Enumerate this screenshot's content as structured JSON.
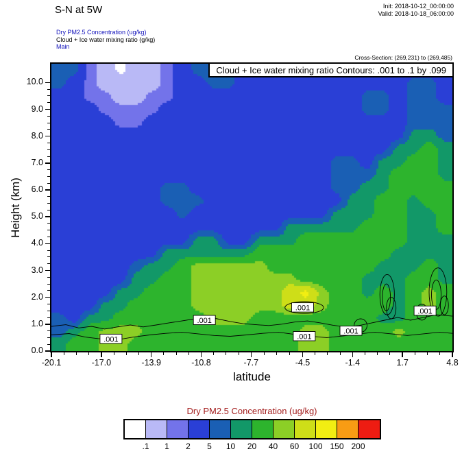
{
  "header": {
    "title": "S-N at 5W",
    "init_label": "Init: 2018-10-12_00:00:00",
    "valid_label": "Valid: 2018-10-18_06:00:00",
    "legend_lines": [
      {
        "text": "Dry PM2.5 Concentration   (ug/kg)",
        "color": "#1212bb"
      },
      {
        "text": "Cloud + Ice water mixing ratio   (g/kg)",
        "color": "#000000"
      },
      {
        "text": "Main",
        "color": "#1212bb"
      }
    ],
    "cross_section": "Cross-Section: (269,231) to (269,485)"
  },
  "chart_data": {
    "type": "heatmap",
    "title": "S-N at 5W",
    "banner": "Cloud + Ice water mixing ratio Contours: .001 to .1 by .099",
    "xlabel": "latitude",
    "ylabel": "Height (km)",
    "xlim": [
      -20.1,
      4.8
    ],
    "ylim": [
      0,
      10.7
    ],
    "x_ticks": {
      "values": [
        -20.1,
        -17.0,
        -13.9,
        -10.8,
        -7.7,
        -4.5,
        -1.4,
        1.7,
        4.8
      ],
      "labels": [
        "-20.1",
        "-17.0",
        "-13.9",
        "-10.8",
        "-7.7",
        "-4.5",
        "-1.4",
        "1.7",
        "4.8"
      ]
    },
    "y_ticks": {
      "values": [
        0,
        1,
        2,
        3,
        4,
        5,
        6,
        7,
        8,
        9,
        10
      ],
      "labels": [
        "0.0",
        "1.0",
        "2.0",
        "3.0",
        "4.0",
        "5.0",
        "6.0",
        "7.0",
        "8.0",
        "9.0",
        "10.0"
      ]
    },
    "colorbar": {
      "title": "Dry PM2.5 Concentration  (ug/kg)",
      "title_color": "#a41e1e",
      "units": "ug/kg",
      "levels": [
        0.1,
        1,
        2,
        5,
        10,
        20,
        40,
        60,
        100,
        150,
        200
      ],
      "labels": [
        ".1",
        "1",
        "2",
        "5",
        "10",
        "20",
        "40",
        "60",
        "100",
        "150",
        "200"
      ],
      "palette": [
        "#ffffff",
        "#b9b9f6",
        "#7373ea",
        "#2a3fd6",
        "#1a5fb4",
        "#129868",
        "#2db42d",
        "#8ccf26",
        "#cede18",
        "#f2ee12",
        "#f89c14",
        "#ee1c12"
      ]
    },
    "field": {
      "name": "Dry PM2.5 Concentration",
      "units": "ug/kg",
      "lat_range": [
        -20.1,
        4.8
      ],
      "height_range_km": [
        0,
        10.7
      ],
      "rows_order": "top_to_bottom",
      "values": [
        [
          7,
          7,
          1.5,
          0.5,
          0.05,
          0.5,
          0.5,
          1.5,
          3,
          7,
          7,
          7,
          3,
          3,
          3,
          3,
          3,
          3,
          3,
          3,
          3,
          3,
          3,
          3,
          3,
          3
        ],
        [
          7,
          3,
          1.5,
          0.5,
          0.5,
          0.5,
          0.5,
          1.5,
          3,
          3,
          7,
          7,
          3,
          3,
          3,
          3,
          3,
          3,
          3,
          3,
          3,
          3,
          3,
          7,
          7,
          3
        ],
        [
          3,
          3,
          1.5,
          1.5,
          0.5,
          0.5,
          1.5,
          1.5,
          3,
          3,
          3,
          3,
          3,
          3,
          3,
          3,
          3,
          3,
          3,
          3,
          7,
          7,
          3,
          7,
          7,
          3
        ],
        [
          3,
          3,
          3,
          1.5,
          1.5,
          1.5,
          1.5,
          3,
          3,
          3,
          3,
          3,
          3,
          3,
          3,
          3,
          3,
          3,
          3,
          3,
          7,
          7,
          3,
          7,
          7,
          7
        ],
        [
          3,
          3,
          3,
          3,
          1.5,
          1.5,
          3,
          3,
          3,
          3,
          3,
          3,
          3,
          3,
          3,
          3,
          3,
          3,
          3,
          3,
          3,
          3,
          3,
          7,
          7,
          7
        ],
        [
          3,
          3,
          3,
          3,
          3,
          3,
          3,
          3,
          3,
          3,
          3,
          3,
          3,
          3,
          3,
          3,
          3,
          3,
          3,
          3,
          3,
          3,
          3,
          15,
          15,
          7
        ],
        [
          3,
          3,
          3,
          3,
          3,
          3,
          3,
          3,
          3,
          3,
          3,
          3,
          3,
          3,
          3,
          3,
          3,
          3,
          3,
          3,
          3,
          3,
          15,
          15,
          30,
          15
        ],
        [
          3,
          3,
          3,
          3,
          3,
          3,
          3,
          3,
          3,
          3,
          3,
          3,
          3,
          3,
          3,
          3,
          3,
          3,
          7,
          7,
          3,
          15,
          15,
          30,
          30,
          15
        ],
        [
          3,
          3,
          3,
          3,
          3,
          3,
          3,
          3,
          3,
          3,
          3,
          3,
          3,
          3,
          3,
          3,
          3,
          3,
          7,
          7,
          7,
          15,
          30,
          30,
          30,
          15
        ],
        [
          3,
          3,
          3,
          3,
          3,
          3,
          3,
          7,
          7,
          3,
          3,
          3,
          3,
          3,
          3,
          3,
          3,
          3,
          7,
          7,
          15,
          15,
          30,
          30,
          30,
          30
        ],
        [
          3,
          3,
          3,
          3,
          3,
          3,
          3,
          7,
          7,
          7,
          3,
          3,
          3,
          3,
          3,
          3,
          3,
          3,
          3,
          15,
          15,
          30,
          30,
          15,
          30,
          30
        ],
        [
          3,
          3,
          3,
          3,
          3,
          3,
          3,
          3,
          7,
          3,
          3,
          3,
          3,
          3,
          3,
          3,
          3,
          3,
          15,
          15,
          15,
          30,
          30,
          15,
          15,
          30
        ],
        [
          3,
          3,
          3,
          3,
          3,
          3,
          3,
          3,
          3,
          3,
          3,
          3,
          3,
          3,
          3,
          15,
          15,
          15,
          15,
          15,
          30,
          30,
          30,
          15,
          15,
          30
        ],
        [
          3,
          3,
          3,
          3,
          3,
          3,
          3,
          3,
          3,
          15,
          15,
          3,
          3,
          15,
          15,
          15,
          30,
          30,
          30,
          30,
          30,
          30,
          30,
          15,
          15,
          15
        ],
        [
          3,
          3,
          3,
          3,
          3,
          3,
          3,
          15,
          15,
          15,
          15,
          15,
          15,
          30,
          30,
          30,
          30,
          30,
          30,
          30,
          30,
          30,
          15,
          15,
          15,
          15
        ],
        [
          3,
          3,
          3,
          3,
          3,
          7,
          15,
          15,
          30,
          50,
          50,
          50,
          50,
          50,
          30,
          30,
          30,
          30,
          30,
          30,
          30,
          15,
          15,
          15,
          30,
          15
        ],
        [
          3,
          3,
          3,
          3,
          3,
          15,
          15,
          30,
          30,
          50,
          50,
          50,
          50,
          50,
          50,
          50,
          30,
          30,
          30,
          30,
          15,
          15,
          15,
          30,
          30,
          15
        ],
        [
          3,
          3,
          3,
          3,
          15,
          15,
          30,
          30,
          30,
          50,
          50,
          50,
          50,
          50,
          50,
          80,
          120,
          50,
          30,
          30,
          15,
          30,
          15,
          30,
          50,
          30
        ],
        [
          3,
          3,
          3,
          15,
          15,
          30,
          30,
          30,
          30,
          50,
          50,
          50,
          50,
          50,
          50,
          80,
          80,
          50,
          30,
          30,
          30,
          30,
          15,
          30,
          50,
          30
        ],
        [
          7,
          3,
          15,
          15,
          30,
          30,
          30,
          30,
          30,
          30,
          50,
          50,
          50,
          30,
          30,
          30,
          30,
          30,
          30,
          30,
          30,
          15,
          15,
          30,
          30,
          30
        ],
        [
          7,
          15,
          30,
          50,
          50,
          50,
          30,
          30,
          30,
          30,
          30,
          30,
          30,
          30,
          30,
          30,
          50,
          50,
          30,
          30,
          30,
          30,
          50,
          30,
          30,
          30
        ],
        [
          15,
          30,
          30,
          50,
          50,
          30,
          30,
          30,
          30,
          30,
          30,
          30,
          30,
          30,
          30,
          30,
          50,
          50,
          30,
          30,
          30,
          30,
          30,
          30,
          30,
          30
        ]
      ]
    },
    "cloud_contours": {
      "field": "Cloud + Ice water mixing ratio",
      "units": "g/kg",
      "interval_text": ".001 to .1 by .099",
      "label": ".001",
      "lines": [
        [
          [
            -20.1,
            0.92
          ],
          [
            -19.2,
            0.98
          ],
          [
            -18.4,
            0.86
          ],
          [
            -17.6,
            0.92
          ],
          [
            -16.8,
            0.82
          ],
          [
            -16.0,
            0.9
          ],
          [
            -15.2,
            0.97
          ],
          [
            -14.4,
            0.9
          ],
          [
            -13.6,
            0.97
          ],
          [
            -12.8,
            1.05
          ],
          [
            -12.0,
            1.12
          ],
          [
            -11.2,
            1.2
          ],
          [
            -10.5,
            1.28
          ],
          [
            -9.8,
            1.2
          ],
          [
            -9.0,
            1.1
          ],
          [
            -8.2,
            1.02
          ],
          [
            -7.4,
            0.98
          ],
          [
            -6.6,
            0.95
          ],
          [
            -5.8,
            1.0
          ],
          [
            -5.0,
            1.08
          ],
          [
            -4.2,
            1.12
          ],
          [
            -3.4,
            1.05
          ],
          [
            -2.6,
            0.96
          ],
          [
            -1.8,
            0.9
          ],
          [
            -1.0,
            0.95
          ],
          [
            -0.2,
            1.05
          ],
          [
            0.6,
            1.15
          ],
          [
            1.4,
            1.25
          ],
          [
            2.2,
            1.15
          ],
          [
            3.0,
            1.25
          ],
          [
            3.8,
            1.35
          ],
          [
            4.8,
            1.3
          ]
        ],
        [
          [
            -20.1,
            0.6
          ],
          [
            -19.0,
            0.65
          ],
          [
            -18.0,
            0.52
          ],
          [
            -17.0,
            0.45
          ],
          [
            -16.0,
            0.42
          ],
          [
            -15.0,
            0.52
          ],
          [
            -14.0,
            0.6
          ],
          [
            -13.0,
            0.66
          ],
          [
            -12.0,
            0.7
          ],
          [
            -11.0,
            0.64
          ],
          [
            -10.0,
            0.58
          ],
          [
            -9.0,
            0.55
          ],
          [
            -8.0,
            0.6
          ],
          [
            -7.0,
            0.66
          ],
          [
            -6.0,
            0.7
          ],
          [
            -5.0,
            0.62
          ],
          [
            -4.0,
            0.55
          ],
          [
            -3.0,
            0.5
          ],
          [
            -2.0,
            0.56
          ],
          [
            -1.0,
            0.64
          ],
          [
            0.0,
            0.7
          ],
          [
            1.0,
            0.64
          ],
          [
            2.0,
            0.58
          ],
          [
            3.0,
            0.64
          ],
          [
            4.0,
            0.7
          ],
          [
            4.8,
            0.66
          ]
        ]
      ],
      "loops": [
        {
          "cx": -4.4,
          "cy": 1.62,
          "rx": 1.2,
          "ry": 0.22
        },
        {
          "cx": 0.75,
          "cy": 2.1,
          "rx": 0.45,
          "ry": 0.75
        },
        {
          "cx": 0.7,
          "cy": 2.0,
          "rx": 0.25,
          "ry": 0.5
        },
        {
          "cx": 1.0,
          "cy": 1.6,
          "rx": 0.3,
          "ry": 0.4
        },
        {
          "cx": 3.9,
          "cy": 2.2,
          "rx": 0.55,
          "ry": 0.9
        },
        {
          "cx": 3.8,
          "cy": 2.1,
          "rx": 0.3,
          "ry": 0.55
        },
        {
          "cx": 4.3,
          "cy": 1.7,
          "rx": 0.25,
          "ry": 0.35
        },
        {
          "cx": 2.9,
          "cy": 1.45,
          "rx": 0.35,
          "ry": 0.3
        },
        {
          "cx": -0.9,
          "cy": 0.95,
          "rx": 0.4,
          "ry": 0.25
        }
      ],
      "labels": [
        {
          "lat": -16.4,
          "km": 0.45
        },
        {
          "lat": -10.6,
          "km": 1.15
        },
        {
          "lat": -4.5,
          "km": 1.62
        },
        {
          "lat": -4.4,
          "km": 0.55
        },
        {
          "lat": -1.5,
          "km": 0.75
        },
        {
          "lat": 3.1,
          "km": 1.5
        }
      ]
    }
  }
}
